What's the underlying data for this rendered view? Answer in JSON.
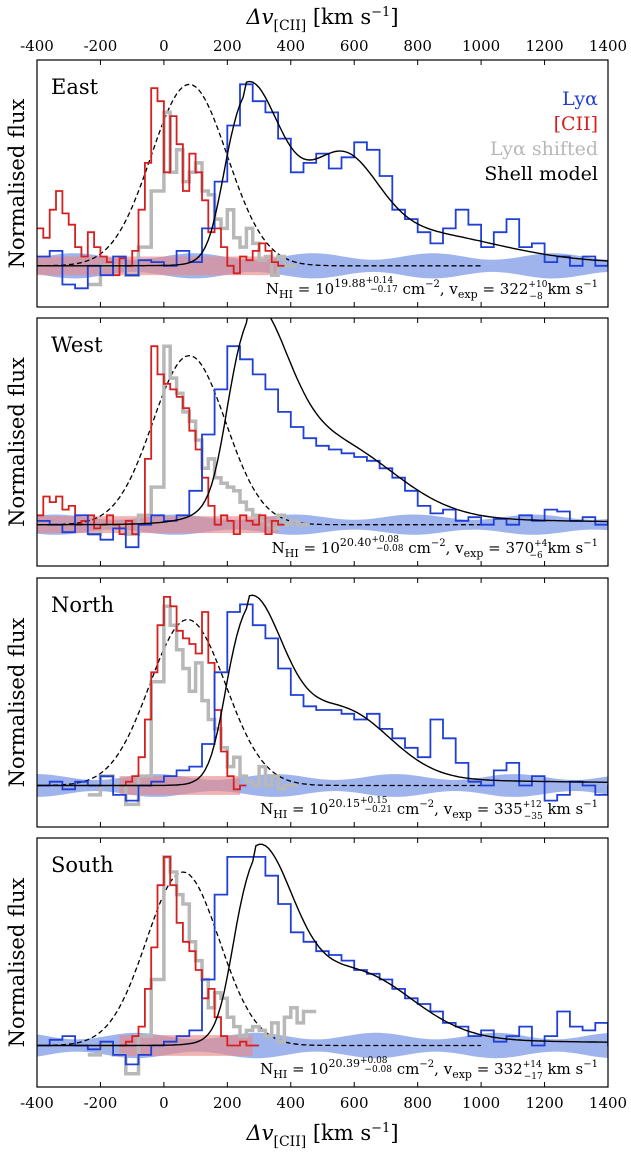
{
  "chart_data": {
    "type": "line",
    "x_axis": {
      "label": "Δv",
      "label_sub": "[CII]",
      "label_unit_pre": " [km s",
      "label_unit_sup": "−1",
      "label_unit_post": "]",
      "range": [
        -400,
        1400
      ],
      "ticks": [
        -400,
        -200,
        0,
        200,
        400,
        600,
        800,
        1000,
        1200,
        1400
      ],
      "tick_labels": [
        "-400",
        "-200",
        "0",
        "200",
        "400",
        "600",
        "800",
        "1000",
        "1200",
        "1400"
      ]
    },
    "y_label": "Normalised flux",
    "legend": [
      {
        "label": "Lyα",
        "color": "#1f3fd6"
      },
      {
        "label": "[CII]",
        "color": "#d62020"
      },
      {
        "label": "Lyα shifted",
        "color": "#b8b8b8"
      },
      {
        "label": "Shell model",
        "color": "#000000"
      }
    ],
    "colors": {
      "lya": "#1f3fd6",
      "cii": "#d62020",
      "lya_shifted": "#b8b8b8",
      "model": "#000000",
      "lya_band": "#7f9be6",
      "cii_band": "#e88a8a"
    },
    "panels": [
      {
        "name": "East",
        "annotation": {
          "nhi_exp": "19.88",
          "nhi_up": "+0.14",
          "nhi_lo": "−0.17",
          "vexp": "322",
          "vexp_up": "+10",
          "vexp_lo": "−8"
        },
        "lya_band": {
          "x0": -400,
          "x1": 1400,
          "half": 0.05
        },
        "cii_band": {
          "x0": -400,
          "x1": 360,
          "half": 0.05
        },
        "lya_x": [
          -400,
          -360,
          -320,
          -280,
          -240,
          -200,
          -160,
          -120,
          -80,
          -40,
          0,
          40,
          80,
          120,
          160,
          200,
          240,
          280,
          320,
          360,
          400,
          440,
          480,
          520,
          560,
          600,
          640,
          680,
          720,
          760,
          800,
          840,
          880,
          920,
          960,
          1000,
          1040,
          1080,
          1120,
          1160,
          1200,
          1240,
          1280,
          1320,
          1360,
          1400
        ],
        "lya_y": [
          0.05,
          0.08,
          -0.1,
          -0.12,
          0.0,
          -0.05,
          0.05,
          -0.05,
          0.03,
          0.02,
          0.0,
          0.08,
          0.02,
          0.2,
          0.45,
          0.75,
          0.97,
          0.88,
          0.82,
          0.68,
          0.5,
          0.55,
          0.6,
          0.52,
          0.58,
          0.66,
          0.62,
          0.48,
          0.3,
          0.25,
          0.18,
          0.12,
          0.2,
          0.3,
          0.22,
          0.1,
          0.18,
          0.25,
          0.1,
          0.12,
          0.02,
          0.05,
          0.0,
          0.05,
          0.0,
          0.02
        ],
        "cii_x": [
          -400,
          -380,
          -360,
          -340,
          -320,
          -300,
          -280,
          -260,
          -240,
          -220,
          -200,
          -180,
          -160,
          -140,
          -120,
          -100,
          -80,
          -60,
          -40,
          -20,
          0,
          20,
          40,
          60,
          80,
          100,
          120,
          140,
          160,
          180,
          200,
          220,
          240,
          260,
          280,
          300,
          320,
          340,
          360
        ],
        "cii_y": [
          0.2,
          0.15,
          0.3,
          0.4,
          0.28,
          0.22,
          0.1,
          0.05,
          0.18,
          0.1,
          0.05,
          0.02,
          -0.05,
          0.04,
          0.0,
          0.08,
          0.3,
          0.55,
          0.95,
          0.88,
          0.5,
          0.8,
          0.65,
          0.4,
          0.6,
          0.5,
          0.35,
          0.18,
          0.2,
          0.1,
          0.0,
          -0.04,
          0.05,
          0.03,
          0.08,
          0.12,
          0.08,
          0.02,
          0.0
        ],
        "shifted_x": [
          -240,
          -200,
          -160,
          -120,
          -80,
          -40,
          0,
          20,
          40,
          60,
          80,
          100,
          120,
          140,
          160,
          180,
          200,
          220,
          240,
          260,
          280,
          300,
          320,
          340,
          360,
          380
        ],
        "shifted_y": [
          -0.1,
          0.0,
          0.0,
          -0.05,
          0.1,
          0.4,
          0.82,
          0.5,
          0.62,
          0.45,
          0.5,
          0.55,
          0.4,
          0.38,
          0.25,
          0.2,
          0.3,
          0.15,
          0.1,
          0.2,
          0.12,
          0.03,
          0.05,
          -0.05,
          0.05,
          0.0
        ],
        "model_peak": 260,
        "model_width": 105,
        "model_amp": 0.92,
        "model_secondary": [
          {
            "mu": 560,
            "sigma": 110,
            "amp": 0.45
          },
          {
            "mu": 780,
            "sigma": 260,
            "amp": 0.15
          }
        ],
        "dashed_mu": 80,
        "dashed_sigma": 120,
        "dashed_amp": 0.97
      },
      {
        "name": "West",
        "annotation": {
          "nhi_exp": "20.40",
          "nhi_up": "+0.08",
          "nhi_lo": "−0.08",
          "vexp": "370",
          "vexp_up": "+4",
          "vexp_lo": "−6"
        },
        "lya_band": {
          "x0": -400,
          "x1": 1400,
          "half": 0.04
        },
        "cii_band": {
          "x0": -400,
          "x1": 360,
          "half": 0.045
        },
        "lya_x": [
          -400,
          -360,
          -320,
          -280,
          -240,
          -200,
          -160,
          -120,
          -80,
          -40,
          0,
          40,
          80,
          120,
          160,
          200,
          240,
          280,
          320,
          360,
          400,
          440,
          480,
          520,
          560,
          600,
          640,
          680,
          720,
          760,
          800,
          840,
          880,
          920,
          960,
          1000,
          1040,
          1080,
          1120,
          1160,
          1200,
          1240,
          1280,
          1320,
          1360,
          1400
        ],
        "lya_y": [
          0.02,
          0.0,
          -0.04,
          0.05,
          -0.05,
          -0.08,
          -0.02,
          -0.12,
          0.0,
          0.05,
          0.02,
          0.05,
          0.18,
          0.48,
          0.72,
          0.95,
          0.88,
          0.8,
          0.72,
          0.6,
          0.52,
          0.46,
          0.42,
          0.4,
          0.38,
          0.36,
          0.34,
          0.3,
          0.25,
          0.18,
          0.1,
          0.06,
          0.08,
          0.02,
          0.04,
          0.0,
          0.03,
          0.0,
          0.05,
          0.02,
          0.08,
          0.07,
          0.02,
          0.04,
          0.0,
          0.01
        ],
        "cii_x": [
          -400,
          -380,
          -360,
          -340,
          -320,
          -300,
          -280,
          -260,
          -240,
          -220,
          -200,
          -180,
          -160,
          -140,
          -120,
          -100,
          -80,
          -60,
          -40,
          -20,
          0,
          20,
          40,
          60,
          80,
          100,
          120,
          140,
          160,
          180,
          200,
          220,
          240,
          260,
          280,
          300,
          320,
          340,
          360
        ],
        "cii_y": [
          0.05,
          0.15,
          0.12,
          0.15,
          0.08,
          0.1,
          0.0,
          0.02,
          0.05,
          -0.02,
          0.0,
          0.05,
          0.0,
          -0.05,
          0.02,
          -0.05,
          0.0,
          0.35,
          0.95,
          0.8,
          0.75,
          0.72,
          0.68,
          0.62,
          0.5,
          0.4,
          0.25,
          0.1,
          0.0,
          0.05,
          0.02,
          -0.05,
          0.05,
          0.02,
          0.0,
          0.05,
          -0.05,
          0.02,
          0.0
        ],
        "shifted_x": [
          -240,
          -200,
          -160,
          -120,
          -80,
          -40,
          0,
          20,
          40,
          60,
          80,
          100,
          120,
          140,
          160,
          180,
          200,
          220,
          240,
          260,
          280,
          300,
          320,
          340,
          360,
          380,
          400,
          420
        ],
        "shifted_y": [
          -0.05,
          0.0,
          0.0,
          -0.05,
          0.05,
          0.2,
          0.95,
          0.78,
          0.7,
          0.6,
          0.55,
          0.45,
          0.3,
          0.35,
          0.25,
          0.22,
          0.2,
          0.18,
          0.12,
          0.08,
          0.05,
          0.02,
          0.0,
          -0.02,
          0.05,
          0.0,
          0.02,
          0.0
        ],
        "model_peak": 270,
        "model_width": 110,
        "model_amp": 0.95,
        "model_secondary": [
          {
            "mu": 520,
            "sigma": 200,
            "amp": 0.4
          }
        ],
        "dashed_mu": 80,
        "dashed_sigma": 115,
        "dashed_amp": 0.9
      },
      {
        "name": "North",
        "annotation": {
          "nhi_exp": "20.15",
          "nhi_up": "+0.15",
          "nhi_lo": "−0.21",
          "vexp": "335",
          "vexp_up": "+12",
          "vexp_lo": "−35"
        },
        "lya_band": {
          "x0": -400,
          "x1": 1400,
          "half": 0.045
        },
        "cii_band": {
          "x0": -140,
          "x1": 240,
          "half": 0.05
        },
        "lya_x": [
          -400,
          -360,
          -320,
          -280,
          -240,
          -200,
          -160,
          -120,
          -80,
          -40,
          0,
          40,
          80,
          120,
          160,
          200,
          240,
          280,
          320,
          360,
          400,
          440,
          480,
          520,
          560,
          600,
          640,
          680,
          720,
          760,
          800,
          840,
          880,
          920,
          960,
          1000,
          1040,
          1080,
          1120,
          1160,
          1200,
          1240,
          1280,
          1320,
          1360,
          1400
        ],
        "lya_y": [
          0.0,
          0.02,
          -0.02,
          0.02,
          0.0,
          0.05,
          -0.05,
          -0.08,
          0.0,
          0.02,
          0.05,
          0.08,
          0.1,
          0.22,
          0.6,
          0.92,
          0.96,
          0.85,
          0.78,
          0.62,
          0.48,
          0.42,
          0.4,
          0.4,
          0.38,
          0.35,
          0.38,
          0.3,
          0.25,
          0.2,
          0.15,
          0.35,
          0.25,
          0.12,
          0.02,
          0.0,
          0.08,
          0.12,
          0.0,
          0.05,
          -0.08,
          -0.05,
          0.02,
          0.0,
          -0.05,
          0.0
        ],
        "cii_x": [
          -140,
          -120,
          -100,
          -80,
          -60,
          -40,
          -20,
          0,
          20,
          40,
          60,
          80,
          100,
          120,
          140,
          160,
          180,
          200,
          220,
          240
        ],
        "cii_y": [
          0.0,
          0.02,
          0.05,
          0.15,
          0.35,
          0.6,
          0.85,
          1.0,
          0.95,
          0.82,
          0.78,
          0.75,
          0.7,
          0.92,
          0.65,
          0.4,
          0.18,
          0.05,
          -0.02,
          0.0
        ],
        "shifted_x": [
          -240,
          -200,
          -160,
          -120,
          -80,
          -40,
          0,
          20,
          40,
          60,
          80,
          100,
          120,
          140,
          160,
          180,
          200,
          220,
          240,
          260,
          280,
          300,
          320,
          340,
          360,
          380
        ],
        "shifted_y": [
          -0.05,
          0.05,
          0.0,
          -0.1,
          0.05,
          0.55,
          0.95,
          0.85,
          0.72,
          0.62,
          0.5,
          0.65,
          0.45,
          0.35,
          0.3,
          0.2,
          0.1,
          0.15,
          0.05,
          0.02,
          0.0,
          0.1,
          0.0,
          0.05,
          -0.02,
          0.0
        ],
        "model_peak": 265,
        "model_width": 105,
        "model_amp": 0.92,
        "model_secondary": [
          {
            "mu": 560,
            "sigma": 150,
            "amp": 0.36
          }
        ],
        "dashed_mu": 75,
        "dashed_sigma": 120,
        "dashed_amp": 0.88
      },
      {
        "name": "South",
        "annotation": {
          "nhi_exp": "20.39",
          "nhi_up": "+0.08",
          "nhi_lo": "−0.08",
          "vexp": "332",
          "vexp_up": "+14",
          "vexp_lo": "−17"
        },
        "lya_band": {
          "x0": -400,
          "x1": 1400,
          "half": 0.05
        },
        "cii_band": {
          "x0": -140,
          "x1": 280,
          "half": 0.055
        },
        "lya_x": [
          -400,
          -360,
          -320,
          -280,
          -240,
          -200,
          -160,
          -120,
          -80,
          -40,
          0,
          40,
          80,
          120,
          160,
          200,
          240,
          280,
          320,
          360,
          400,
          440,
          480,
          520,
          560,
          600,
          640,
          680,
          720,
          760,
          800,
          840,
          880,
          920,
          960,
          1000,
          1040,
          1080,
          1120,
          1160,
          1200,
          1240,
          1280,
          1320,
          1360,
          1400
        ],
        "lya_y": [
          0.0,
          0.03,
          0.05,
          0.0,
          -0.02,
          0.02,
          -0.05,
          -0.1,
          -0.05,
          0.0,
          0.02,
          0.05,
          0.08,
          0.35,
          0.8,
          1.0,
          1.0,
          1.0,
          0.9,
          0.75,
          0.6,
          0.55,
          0.5,
          0.48,
          0.45,
          0.4,
          0.38,
          0.35,
          0.3,
          0.25,
          0.22,
          0.18,
          0.12,
          0.1,
          0.05,
          0.08,
          0.02,
          0.05,
          0.1,
          0.0,
          0.05,
          0.18,
          0.1,
          0.08,
          0.12,
          0.0
        ],
        "cii_x": [
          -140,
          -120,
          -100,
          -80,
          -60,
          -40,
          -20,
          0,
          20,
          40,
          60,
          80,
          100,
          120,
          140,
          160,
          180,
          200,
          220,
          240,
          260,
          280
        ],
        "cii_y": [
          0.0,
          0.02,
          0.05,
          0.1,
          0.3,
          0.52,
          0.85,
          1.0,
          0.85,
          0.65,
          0.55,
          0.5,
          0.4,
          0.25,
          0.3,
          0.15,
          0.05,
          0.0,
          0.0,
          0.02,
          0.0,
          0.0
        ],
        "shifted_x": [
          -240,
          -200,
          -160,
          -120,
          -80,
          -40,
          0,
          20,
          40,
          60,
          80,
          100,
          120,
          140,
          160,
          180,
          200,
          220,
          240,
          260,
          280,
          300,
          320,
          340,
          360,
          380,
          400,
          420,
          440
        ],
        "shifted_y": [
          -0.05,
          0.0,
          -0.05,
          -0.15,
          0.05,
          0.35,
          1.0,
          0.92,
          0.8,
          0.75,
          0.55,
          0.45,
          0.35,
          0.2,
          0.28,
          0.25,
          0.15,
          0.1,
          0.05,
          0.08,
          0.1,
          0.08,
          0.05,
          0.12,
          0.02,
          0.15,
          0.2,
          0.12,
          0.18
        ],
        "model_peak": 290,
        "model_width": 110,
        "model_amp": 0.95,
        "model_secondary": [
          {
            "mu": 600,
            "sigma": 180,
            "amp": 0.35
          }
        ],
        "dashed_mu": 60,
        "dashed_sigma": 115,
        "dashed_amp": 0.92
      }
    ]
  }
}
